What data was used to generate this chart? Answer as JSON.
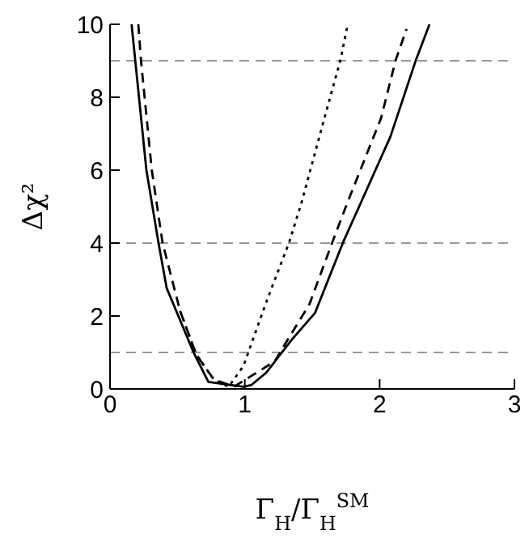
{
  "chart_data": {
    "type": "line",
    "xlabel": "Γ$_{H}$/Γ$_{H}$$^{SM}$",
    "ylabel": "Δχ²",
    "xlim": [
      0,
      3
    ],
    "ylim": [
      0,
      10
    ],
    "xticks": [
      0,
      1,
      2,
      3
    ],
    "yticks": [
      0,
      2,
      4,
      6,
      8,
      10
    ],
    "grid": false,
    "legend": false,
    "marker": "none",
    "ref_lines": [
      {
        "axis": "y",
        "value": 1,
        "color": "#999999",
        "line_style": "dashed"
      },
      {
        "axis": "y",
        "value": 4,
        "color": "#999999",
        "line_style": "dashed"
      },
      {
        "axis": "y",
        "value": 9,
        "color": "#999999",
        "line_style": "dashed"
      }
    ],
    "series": [
      {
        "color": "#000000",
        "line_style": "solid",
        "x": [
          0.16,
          0.27,
          0.36,
          0.42,
          0.62,
          0.73,
          0.99,
          1.05,
          1.16,
          1.35,
          1.52,
          1.73,
          1.86,
          2.08,
          2.27,
          2.37
        ],
        "values": [
          10,
          6,
          4,
          2.77,
          1,
          0.19,
          0.06,
          0.11,
          0.45,
          1.36,
          2.08,
          4.03,
          5.1,
          6.92,
          9.03,
          10
        ]
      },
      {
        "color": "#000000",
        "line_style": "dashed",
        "x": [
          0.21,
          0.23,
          0.31,
          0.39,
          0.52,
          0.64,
          0.77,
          0.92,
          1.22,
          1.48,
          1.65,
          1.76,
          2.01,
          2.12,
          2.2
        ],
        "values": [
          10,
          9,
          6,
          4,
          2.14,
          0.94,
          0.26,
          0.06,
          0.75,
          2.33,
          4.03,
          5.1,
          7.42,
          9.03,
          9.87
        ]
      },
      {
        "color": "#000000",
        "line_style": "dotted",
        "x": [
          0.52,
          0.64,
          0.77,
          0.88,
          0.99,
          1.16,
          1.33,
          1.42,
          1.59,
          1.71,
          1.76
        ],
        "values": [
          2.14,
          0.94,
          0.26,
          0.06,
          0.63,
          2.39,
          4.03,
          5.1,
          7.42,
          9.03,
          9.94
        ]
      }
    ]
  }
}
